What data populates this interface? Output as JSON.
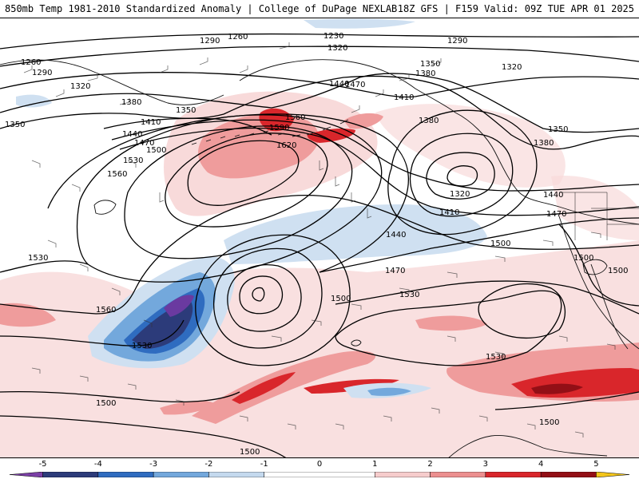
{
  "header": {
    "title_left": "850mb Temp 1981-2010 Standardized Anomaly | College of DuPage NEXLAB",
    "title_right": "18Z GFS | F159 Valid: 09Z TUE APR 01 2025"
  },
  "map": {
    "height_contour_labels": [
      {
        "id": "l1",
        "text": "1260"
      },
      {
        "id": "l2",
        "text": "1290"
      },
      {
        "id": "l3",
        "text": "1230"
      },
      {
        "id": "l4",
        "text": "1290"
      },
      {
        "id": "l5",
        "text": "1320"
      },
      {
        "id": "l6",
        "text": "1260"
      },
      {
        "id": "l7",
        "text": "1290"
      },
      {
        "id": "l8",
        "text": "1320"
      },
      {
        "id": "l9",
        "text": "1350"
      },
      {
        "id": "l10",
        "text": "1320"
      },
      {
        "id": "l11",
        "text": "1350"
      },
      {
        "id": "l12",
        "text": "1380"
      },
      {
        "id": "l13",
        "text": "1440"
      },
      {
        "id": "l14",
        "text": "1470"
      },
      {
        "id": "l15",
        "text": "1410"
      },
      {
        "id": "l16",
        "text": "1380"
      },
      {
        "id": "l17",
        "text": "1350"
      },
      {
        "id": "l18",
        "text": "1380"
      },
      {
        "id": "l19",
        "text": "1410"
      },
      {
        "id": "l20",
        "text": "1440"
      },
      {
        "id": "l21",
        "text": "1470"
      },
      {
        "id": "l22",
        "text": "1500"
      },
      {
        "id": "l23",
        "text": "1350"
      },
      {
        "id": "l24",
        "text": "1560"
      },
      {
        "id": "l25",
        "text": "1590"
      },
      {
        "id": "l26",
        "text": "1620"
      },
      {
        "id": "l27",
        "text": "1530"
      },
      {
        "id": "l28",
        "text": "1560"
      },
      {
        "id": "l29",
        "text": "1380"
      },
      {
        "id": "l30",
        "text": "1320"
      },
      {
        "id": "l31",
        "text": "1410"
      },
      {
        "id": "l32",
        "text": "1440"
      },
      {
        "id": "l33",
        "text": "1470"
      },
      {
        "id": "l34",
        "text": "1440"
      },
      {
        "id": "l35",
        "text": "1530"
      },
      {
        "id": "l36",
        "text": "1500"
      },
      {
        "id": "l37",
        "text": "1470"
      },
      {
        "id": "l38",
        "text": "1500"
      },
      {
        "id": "l39",
        "text": "1500"
      },
      {
        "id": "l40",
        "text": "1530"
      },
      {
        "id": "l41",
        "text": "1560"
      },
      {
        "id": "l42",
        "text": "1530"
      },
      {
        "id": "l43",
        "text": "1530"
      },
      {
        "id": "l44",
        "text": "1500"
      },
      {
        "id": "l45",
        "text": "1500"
      },
      {
        "id": "l46",
        "text": "1500"
      },
      {
        "id": "l47",
        "text": "1380"
      },
      {
        "id": "l48",
        "text": "1500"
      }
    ]
  },
  "colorbar": {
    "scale_values": [
      -5,
      -4,
      -3,
      -2,
      -1,
      0,
      1,
      2,
      3,
      4,
      5
    ],
    "tick_labels": [
      "-5",
      "-4",
      "-3",
      "-2",
      "-1",
      "0",
      "1",
      "2",
      "3",
      "4",
      "5"
    ],
    "colors": [
      {
        "from": -5.6,
        "to": -5,
        "color": "#7b3fa6"
      },
      {
        "from": -5,
        "to": -4,
        "color": "#2c3b7a"
      },
      {
        "from": -4,
        "to": -3,
        "color": "#2f6cc0"
      },
      {
        "from": -3,
        "to": -2,
        "color": "#73a8dc"
      },
      {
        "from": -2,
        "to": -1,
        "color": "#c4d9ee"
      },
      {
        "from": -1,
        "to": 1,
        "color": "#ffffff"
      },
      {
        "from": 1,
        "to": 2,
        "color": "#f6cccc"
      },
      {
        "from": 2,
        "to": 3,
        "color": "#ec8f8f"
      },
      {
        "from": 3,
        "to": 4,
        "color": "#d9262b"
      },
      {
        "from": 4,
        "to": 5,
        "color": "#930f16"
      },
      {
        "from": 5,
        "to": 5.6,
        "color": "#f3c51a"
      }
    ],
    "range": [
      -5.6,
      5.6
    ]
  },
  "palette": {
    "warm_light": "#f8dada",
    "warm_mid": "#ef9c9c",
    "warm_strong": "#d9262b",
    "warm_deep": "#930f16",
    "cool_light": "#cfe0f1",
    "cool_mid": "#73a8dc",
    "cool_strong": "#2f6cc0",
    "cool_deep": "#2c3b7a",
    "cool_extreme": "#6a3aa0"
  }
}
